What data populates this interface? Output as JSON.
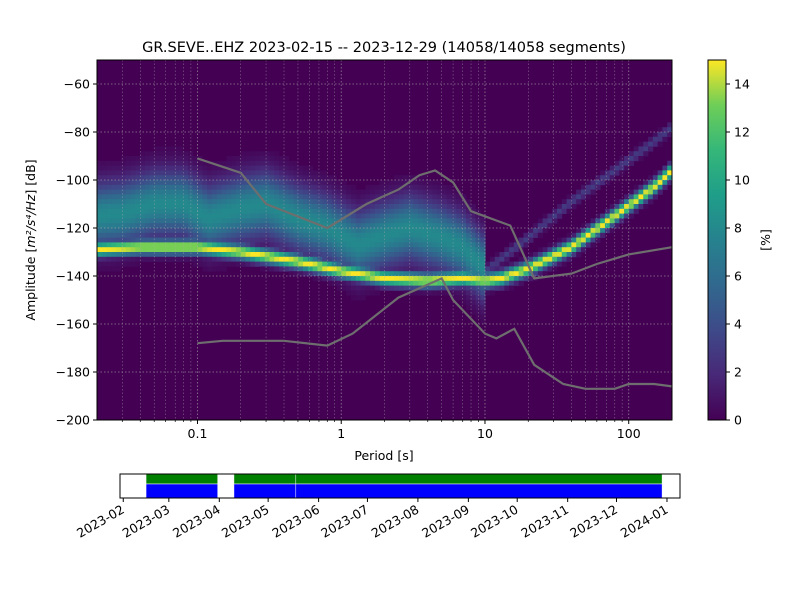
{
  "chart_data": [
    {
      "type": "heatmap",
      "title": "GR.SEVE..EHZ   2023-02-15 -- 2023-12-29  (14058/14058 segments)",
      "xlabel": "Period [s]",
      "ylabel_prefix": "Amplitude [",
      "ylabel_math": "m²/s⁴/Hz",
      "ylabel_suffix": "] [dB]",
      "x_scale": "log",
      "xlim": [
        0.02,
        200
      ],
      "ylim": [
        -200,
        -50
      ],
      "x_ticks": [
        {
          "value": 0.1,
          "label": "0.1"
        },
        {
          "value": 1,
          "label": "1"
        },
        {
          "value": 10,
          "label": "10"
        },
        {
          "value": 100,
          "label": "100"
        }
      ],
      "y_ticks": [
        {
          "value": -60,
          "label": "−60"
        },
        {
          "value": -80,
          "label": "−80"
        },
        {
          "value": -100,
          "label": "−100"
        },
        {
          "value": -120,
          "label": "−120"
        },
        {
          "value": -140,
          "label": "−140"
        },
        {
          "value": -160,
          "label": "−160"
        },
        {
          "value": -180,
          "label": "−180"
        },
        {
          "value": -200,
          "label": "−200"
        }
      ],
      "grid": true,
      "colormap": "viridis",
      "background_color": "#440154",
      "colorbar": {
        "label": "[%]",
        "range": [
          0,
          15
        ],
        "ticks": [
          {
            "value": 0,
            "label": "0"
          },
          {
            "value": 2,
            "label": "2"
          },
          {
            "value": 4,
            "label": "4"
          },
          {
            "value": 6,
            "label": "6"
          },
          {
            "value": 8,
            "label": "8"
          },
          {
            "value": 10,
            "label": "10"
          },
          {
            "value": 12,
            "label": "12"
          },
          {
            "value": 14,
            "label": "14"
          }
        ]
      },
      "density_bands": [
        {
          "points": [
            [
              0.02,
              -115
            ],
            [
              0.03,
              -114
            ],
            [
              0.05,
              -110
            ],
            [
              0.08,
              -110
            ],
            [
              0.12,
              -116
            ],
            [
              0.2,
              -112
            ],
            [
              0.3,
              -110
            ],
            [
              0.5,
              -116
            ],
            [
              0.8,
              -120
            ],
            [
              1.3,
              -127
            ],
            [
              2,
              -123
            ],
            [
              3,
              -120
            ],
            [
              5,
              -124
            ],
            [
              7,
              -128
            ],
            [
              10,
              -137
            ]
          ],
          "width_db": 9,
          "peak_pct": 8
        },
        {
          "points": [
            [
              0.02,
              -129
            ],
            [
              0.04,
              -128
            ],
            [
              0.1,
              -128
            ],
            [
              0.2,
              -130
            ],
            [
              0.5,
              -134
            ],
            [
              1,
              -138
            ],
            [
              2,
              -141
            ],
            [
              4,
              -142
            ],
            [
              7,
              -141
            ],
            [
              10,
              -142
            ],
            [
              13,
              -141
            ],
            [
              20,
              -137
            ],
            [
              40,
              -128
            ],
            [
              80,
              -115
            ],
            [
              150,
              -103
            ],
            [
              200,
              -96
            ]
          ],
          "width_db": 2,
          "peak_pct": 15
        },
        {
          "points": [
            [
              7,
              -140
            ],
            [
              10,
              -138
            ],
            [
              20,
              -124
            ],
            [
              40,
              -109
            ],
            [
              80,
              -96
            ],
            [
              150,
              -84
            ],
            [
              200,
              -78
            ]
          ],
          "width_db": 1.5,
          "peak_pct": 3
        }
      ],
      "series": [
        {
          "name": "",
          "color": "#6e6e6e",
          "points": [
            [
              0.1,
              -91
            ],
            [
              0.2,
              -97
            ],
            [
              0.3,
              -110
            ],
            [
              0.8,
              -120
            ],
            [
              1.5,
              -110
            ],
            [
              2.5,
              -104
            ],
            [
              3.5,
              -98
            ],
            [
              4.5,
              -96
            ],
            [
              6,
              -101
            ],
            [
              8,
              -113
            ],
            [
              15,
              -119
            ],
            [
              22,
              -141
            ],
            [
              40,
              -139
            ],
            [
              60,
              -135
            ],
            [
              100,
              -131
            ],
            [
              200,
              -128
            ]
          ]
        },
        {
          "name": "",
          "color": "#6e6e6e",
          "points": [
            [
              0.1,
              -168
            ],
            [
              0.15,
              -167
            ],
            [
              0.4,
              -167
            ],
            [
              0.8,
              -169
            ],
            [
              1.2,
              -164
            ],
            [
              2.5,
              -149
            ],
            [
              5,
              -141
            ],
            [
              6,
              -150
            ],
            [
              10,
              -164
            ],
            [
              12,
              -166
            ],
            [
              16,
              -162
            ],
            [
              22,
              -177
            ],
            [
              35,
              -185
            ],
            [
              50,
              -187
            ],
            [
              80,
              -187
            ],
            [
              100,
              -185
            ],
            [
              150,
              -185
            ],
            [
              200,
              -186
            ]
          ]
        }
      ]
    },
    {
      "type": "bar",
      "title": "",
      "x_ticks": [
        {
          "date": "2023-02-01",
          "label": "2023-02"
        },
        {
          "date": "2023-03-01",
          "label": "2023-03"
        },
        {
          "date": "2023-04-01",
          "label": "2023-04"
        },
        {
          "date": "2023-05-01",
          "label": "2023-05"
        },
        {
          "date": "2023-06-01",
          "label": "2023-06"
        },
        {
          "date": "2023-07-01",
          "label": "2023-07"
        },
        {
          "date": "2023-08-01",
          "label": "2023-08"
        },
        {
          "date": "2023-09-01",
          "label": "2023-09"
        },
        {
          "date": "2023-10-01",
          "label": "2023-10"
        },
        {
          "date": "2023-11-01",
          "label": "2023-11"
        },
        {
          "date": "2023-12-01",
          "label": "2023-12"
        },
        {
          "date": "2024-01-01",
          "label": "2024-01"
        }
      ],
      "xlim": [
        "2023-01-30",
        "2024-01-09"
      ],
      "series": [
        {
          "color": "#008000",
          "periods": [
            [
              "2023-02-15",
              "2023-03-31"
            ],
            [
              "2023-04-10",
              "2023-05-18"
            ],
            [
              "2023-05-18",
              "2023-12-29"
            ]
          ]
        },
        {
          "color": "#0000ff",
          "periods": [
            [
              "2023-02-15",
              "2023-03-31"
            ],
            [
              "2023-04-10",
              "2023-05-18"
            ],
            [
              "2023-05-18",
              "2023-12-29"
            ]
          ]
        }
      ]
    }
  ]
}
